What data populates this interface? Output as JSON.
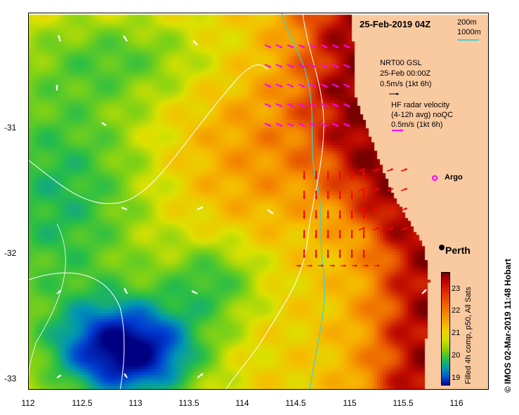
{
  "map": {
    "title": "25-Feb-2019 04Z",
    "x_ticks": [
      "112",
      "112.5",
      "113",
      "113.5",
      "114",
      "114.5",
      "115",
      "115.5",
      "116"
    ],
    "y_ticks": [
      "-31",
      "-32",
      "-33"
    ],
    "lon_range": [
      112,
      116.3
    ],
    "lat_range": [
      -33.1,
      -30.1
    ],
    "places": {
      "perth": "Perth",
      "argo": "Argo"
    },
    "legend": {
      "bathy_200": "200m",
      "bathy_1000": "1000m",
      "gsl_line1": "NRT00 GSL",
      "gsl_line2": "25-Feb 00:00Z",
      "gsl_line3": "0.5m/s (1kt 6h)",
      "hf_line1": "HF radar velocity",
      "hf_line2": "(4-12h avg) noQC",
      "hf_line3": "0.5m/s (1kt 6h)"
    },
    "colorbar": {
      "ticks": [
        "23",
        "22",
        "21",
        "20",
        "19"
      ],
      "range": [
        18.7,
        23.8
      ],
      "label": "Filled 4h comp, p50, All Sats"
    },
    "credit": "© IMOS 02-Mar-2019 11:48 Hobart",
    "colors": {
      "land": "#f9c9a0",
      "bathy_200": "#40d0d0",
      "bathy_1000": "#ffffff",
      "hf_radar": "#ff00ff",
      "hf_radar_strong": "#ff0000",
      "gsl_arrow": "#ffffff"
    }
  }
}
